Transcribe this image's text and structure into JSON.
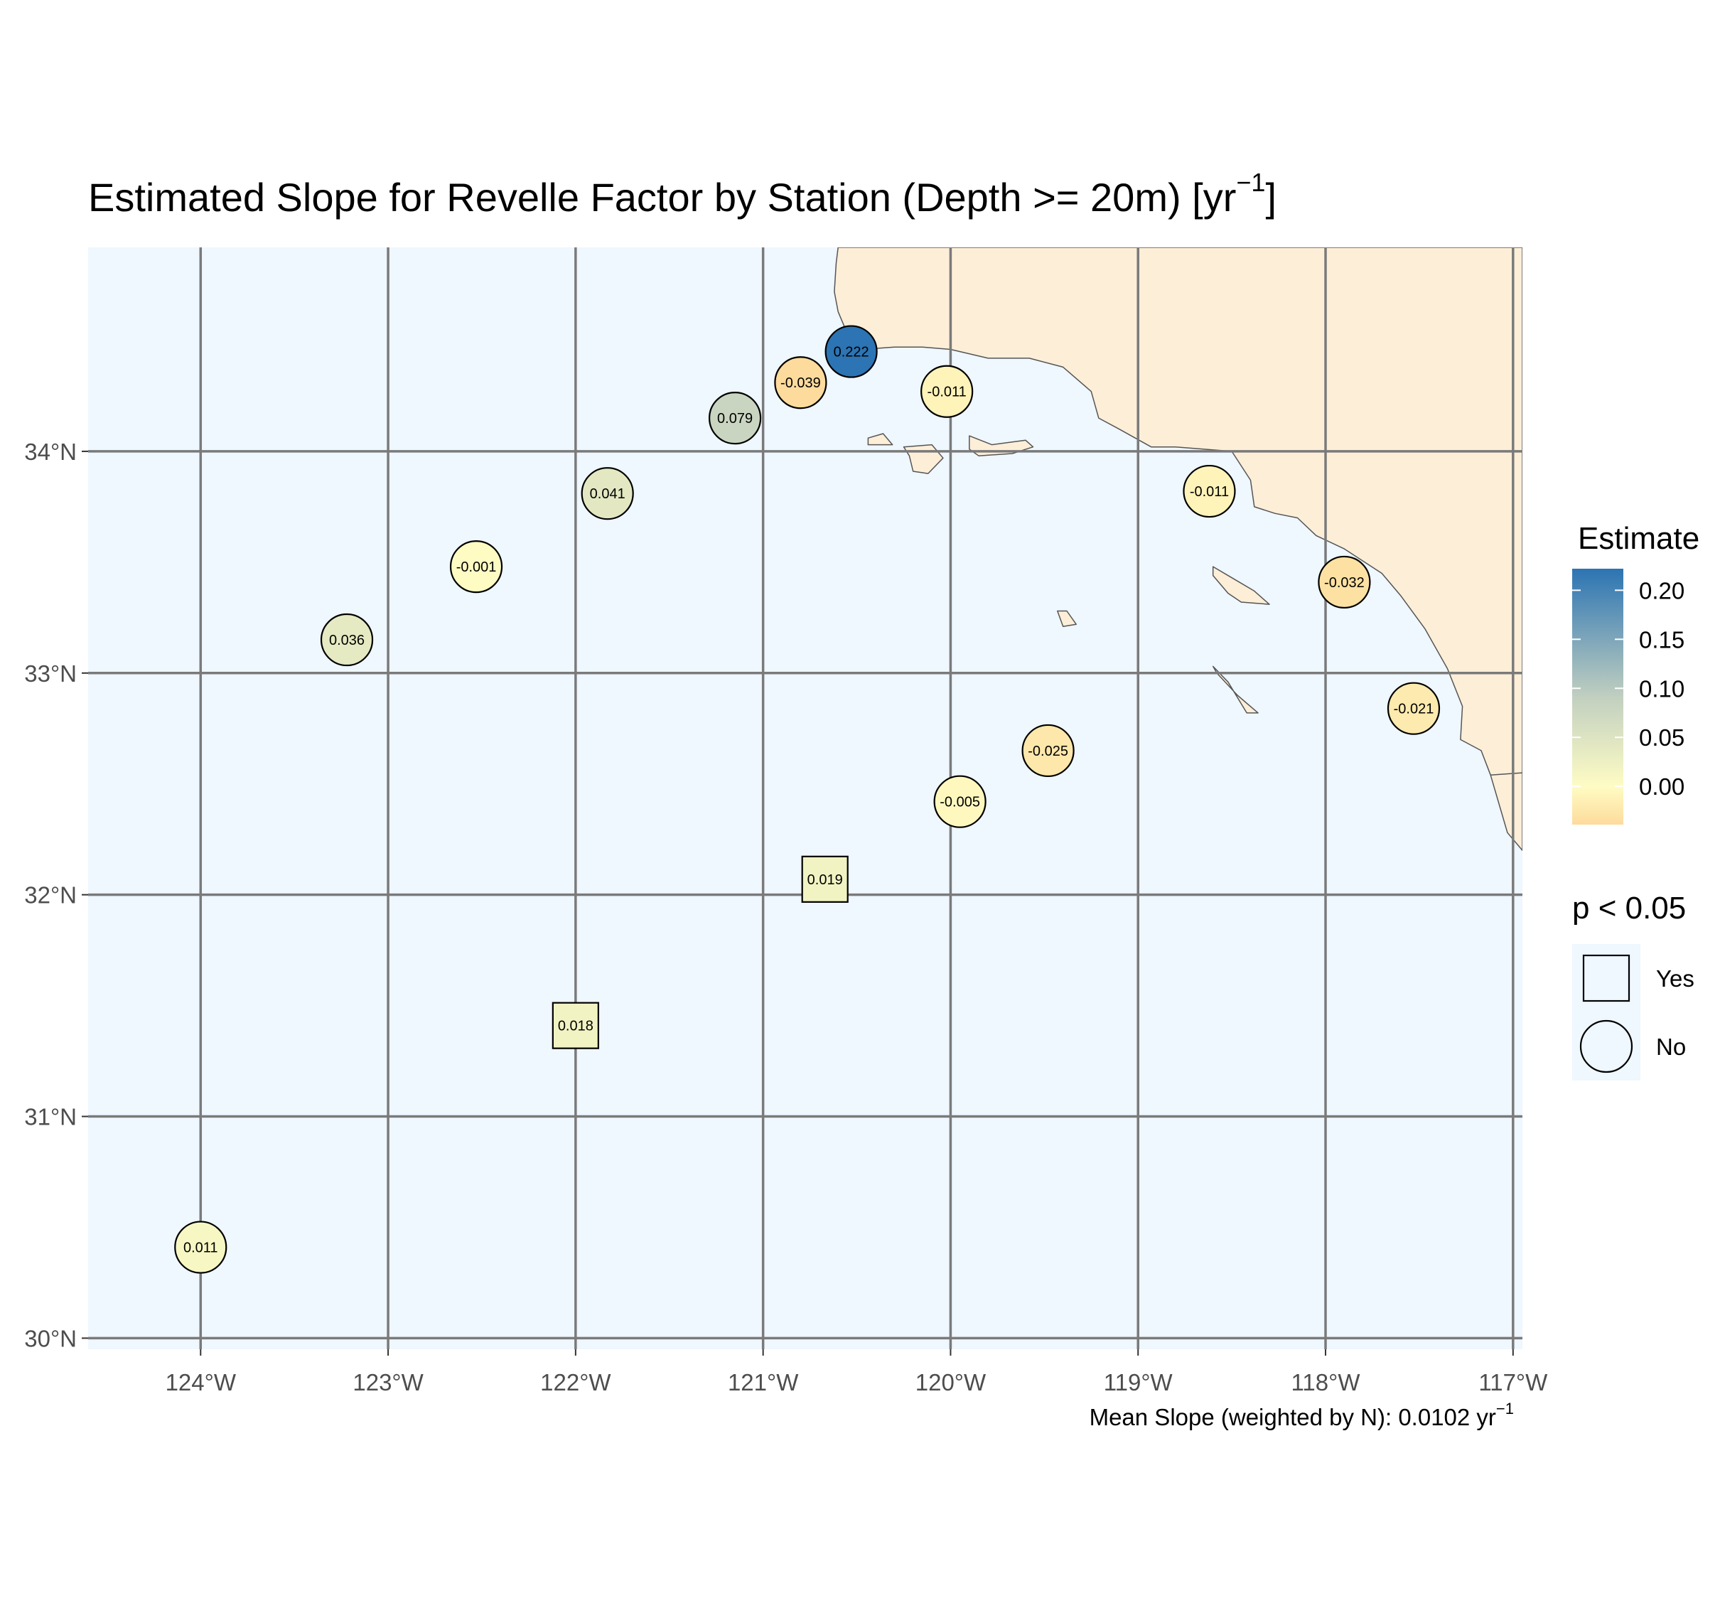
{
  "title": {
    "main": "Estimated Slope for Revelle Factor by Station (Depth >= 20m) [yr",
    "sup": "−1",
    "end": "]"
  },
  "caption": {
    "main": "Mean Slope (weighted by N): 0.0102 yr",
    "sup": "−1"
  },
  "colors": {
    "ocean": "#eff7ff",
    "land": "#fdeed8",
    "coast": "#555555",
    "grid": "#7a7a7a",
    "scale_low": "#fddb9c",
    "scale_zero": "#fefcc4",
    "scale_mid": "#c2d0c0",
    "scale_high": "#2c74b3"
  },
  "chart_data": {
    "type": "scatter",
    "kind": "map",
    "x_axis": {
      "range": [
        -124.6,
        -116.95
      ],
      "ticks": [
        -124,
        -123,
        -122,
        -121,
        -120,
        -119,
        -118,
        -117
      ],
      "tick_labels": [
        "124°W",
        "123°W",
        "122°W",
        "121°W",
        "120°W",
        "119°W",
        "118°W",
        "117°W"
      ]
    },
    "y_axis": {
      "range": [
        29.95,
        34.92
      ],
      "ticks": [
        30,
        31,
        32,
        33,
        34
      ],
      "tick_labels": [
        "30°N",
        "31°N",
        "32°N",
        "33°N",
        "34°N"
      ]
    },
    "grid": true,
    "points": [
      {
        "lon": -120.53,
        "lat": 34.45,
        "estimate": 0.222,
        "label": "0.222",
        "significant": "No"
      },
      {
        "lon": -120.8,
        "lat": 34.31,
        "estimate": -0.039,
        "label": "-0.039",
        "significant": "No"
      },
      {
        "lon": -120.02,
        "lat": 34.27,
        "estimate": -0.011,
        "label": "-0.011",
        "significant": "No"
      },
      {
        "lon": -121.15,
        "lat": 34.15,
        "estimate": 0.079,
        "label": "0.079",
        "significant": "No"
      },
      {
        "lon": -121.83,
        "lat": 33.81,
        "estimate": 0.041,
        "label": "0.041",
        "significant": "No"
      },
      {
        "lon": -118.62,
        "lat": 33.82,
        "estimate": -0.011,
        "label": "-0.011",
        "significant": "No"
      },
      {
        "lon": -122.53,
        "lat": 33.48,
        "estimate": -0.001,
        "label": "-0.001",
        "significant": "No"
      },
      {
        "lon": -117.9,
        "lat": 33.41,
        "estimate": -0.032,
        "label": "-0.032",
        "significant": "No"
      },
      {
        "lon": -123.22,
        "lat": 33.15,
        "estimate": 0.036,
        "label": "0.036",
        "significant": "No"
      },
      {
        "lon": -117.53,
        "lat": 32.84,
        "estimate": -0.021,
        "label": "-0.021",
        "significant": "No"
      },
      {
        "lon": -119.48,
        "lat": 32.65,
        "estimate": -0.025,
        "label": "-0.025",
        "significant": "No"
      },
      {
        "lon": -119.95,
        "lat": 32.42,
        "estimate": -0.005,
        "label": "-0.005",
        "significant": "No"
      },
      {
        "lon": -120.67,
        "lat": 32.07,
        "estimate": 0.019,
        "label": "0.019",
        "significant": "Yes"
      },
      {
        "lon": -122.0,
        "lat": 31.41,
        "estimate": 0.018,
        "label": "0.018",
        "significant": "Yes"
      },
      {
        "lon": -124.0,
        "lat": 30.41,
        "estimate": 0.011,
        "label": "0.011",
        "significant": "No"
      }
    ],
    "color_scale": {
      "title": "Estimate",
      "range": [
        -0.039,
        0.222
      ],
      "breaks": [
        0.0,
        0.05,
        0.1,
        0.15,
        0.2
      ],
      "break_labels": [
        "0.00",
        "0.05",
        "0.10",
        "0.15",
        "0.20"
      ]
    },
    "shape_legend": {
      "title": "p < 0.05",
      "items": [
        {
          "label": "Yes",
          "shape": "square"
        },
        {
          "label": "No",
          "shape": "circle"
        }
      ]
    },
    "land": [
      {
        "name": "mainland",
        "coords": [
          [
            -120.6,
            34.92
          ],
          [
            -120.61,
            34.85
          ],
          [
            -120.62,
            34.72
          ],
          [
            -120.6,
            34.63
          ],
          [
            -120.56,
            34.55
          ],
          [
            -120.47,
            34.46
          ],
          [
            -120.3,
            34.47
          ],
          [
            -120.15,
            34.47
          ],
          [
            -120.0,
            34.46
          ],
          [
            -119.8,
            34.42
          ],
          [
            -119.58,
            34.42
          ],
          [
            -119.4,
            34.38
          ],
          [
            -119.25,
            34.27
          ],
          [
            -119.21,
            34.15
          ],
          [
            -119.1,
            34.1
          ],
          [
            -118.93,
            34.02
          ],
          [
            -118.8,
            34.02
          ],
          [
            -118.5,
            34.0
          ],
          [
            -118.4,
            33.87
          ],
          [
            -118.38,
            33.75
          ],
          [
            -118.27,
            33.72
          ],
          [
            -118.15,
            33.7
          ],
          [
            -118.05,
            33.62
          ],
          [
            -117.9,
            33.56
          ],
          [
            -117.7,
            33.45
          ],
          [
            -117.6,
            33.35
          ],
          [
            -117.47,
            33.2
          ],
          [
            -117.35,
            33.02
          ],
          [
            -117.27,
            32.85
          ],
          [
            -117.28,
            32.7
          ],
          [
            -117.17,
            32.65
          ],
          [
            -117.12,
            32.54
          ],
          [
            -117.03,
            32.28
          ],
          [
            -116.95,
            32.2
          ],
          [
            -116.95,
            34.92
          ]
        ]
      },
      {
        "name": "san-miguel-island",
        "coords": [
          [
            -120.44,
            34.06
          ],
          [
            -120.36,
            34.08
          ],
          [
            -120.31,
            34.03
          ],
          [
            -120.44,
            34.03
          ]
        ]
      },
      {
        "name": "santa-rosa-island",
        "coords": [
          [
            -120.25,
            34.02
          ],
          [
            -120.1,
            34.03
          ],
          [
            -120.04,
            33.97
          ],
          [
            -120.12,
            33.9
          ],
          [
            -120.2,
            33.91
          ],
          [
            -120.22,
            33.98
          ]
        ]
      },
      {
        "name": "santa-cruz-island",
        "coords": [
          [
            -119.9,
            34.07
          ],
          [
            -119.78,
            34.03
          ],
          [
            -119.6,
            34.05
          ],
          [
            -119.56,
            34.02
          ],
          [
            -119.67,
            33.99
          ],
          [
            -119.85,
            33.98
          ],
          [
            -119.9,
            34.01
          ]
        ]
      },
      {
        "name": "santa-barbara-island",
        "coords": [
          [
            -119.43,
            33.28
          ],
          [
            -119.38,
            33.28
          ],
          [
            -119.33,
            33.22
          ],
          [
            -119.4,
            33.21
          ]
        ]
      },
      {
        "name": "santa-catalina-island",
        "coords": [
          [
            -118.6,
            33.48
          ],
          [
            -118.5,
            33.43
          ],
          [
            -118.38,
            33.37
          ],
          [
            -118.3,
            33.31
          ],
          [
            -118.45,
            33.32
          ],
          [
            -118.52,
            33.36
          ],
          [
            -118.6,
            33.44
          ]
        ]
      },
      {
        "name": "san-clemente-island",
        "coords": [
          [
            -118.6,
            33.03
          ],
          [
            -118.52,
            32.96
          ],
          [
            -118.42,
            32.82
          ],
          [
            -118.36,
            32.82
          ],
          [
            -118.47,
            32.9
          ],
          [
            -118.58,
            33.0
          ]
        ]
      }
    ],
    "border": [
      [
        -117.12,
        32.54
      ],
      [
        -116.95,
        32.55
      ]
    ]
  }
}
